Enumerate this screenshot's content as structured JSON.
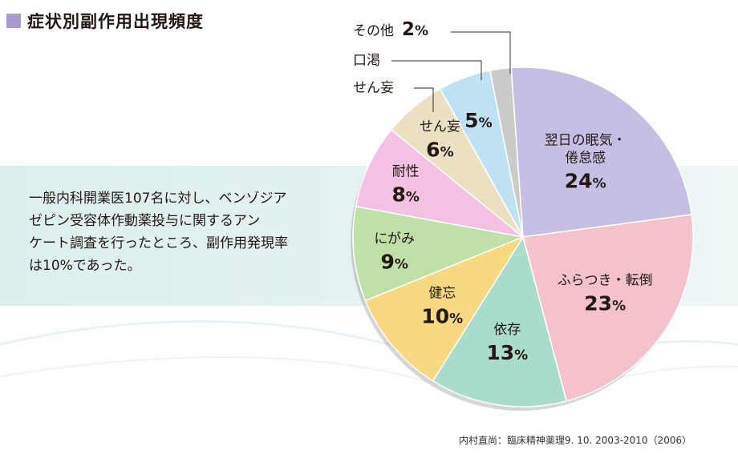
{
  "title": "症状別副作用出現頻度",
  "description": {
    "line1": "一般内科開業医107名に対し、ベンゾジア",
    "line2": "ゼピン受容体作動薬投与に関するアン",
    "line3": "ケート調査を行ったところ、副作用発現率",
    "line4": "は10%であった。"
  },
  "citation": "内村直尚：臨床精神薬理9. 10. 2003-2010（2006）",
  "colors": {
    "title_square": "#a99ad0",
    "band": "#dcefee"
  },
  "chart_data": {
    "type": "pie",
    "title": "症状別副作用出現頻度",
    "unit": "%",
    "slices": [
      {
        "label": "翌日の眠気・倦怠感",
        "label_lines": [
          "翌日の眠気・",
          "倦怠感"
        ],
        "value": 24,
        "display": "24",
        "color": "#c5c0e3"
      },
      {
        "label": "ふらつき・転倒",
        "label_lines": [
          "ふらつき・転倒"
        ],
        "value": 23,
        "display": "23",
        "color": "#f4c2cb"
      },
      {
        "label": "依存",
        "label_lines": [
          "依存"
        ],
        "value": 13,
        "display": "13",
        "color": "#a9dccb"
      },
      {
        "label": "健忘",
        "label_lines": [
          "健忘"
        ],
        "value": 10,
        "display": "10",
        "color": "#f8d97f"
      },
      {
        "label": "にがみ",
        "label_lines": [
          "にがみ"
        ],
        "value": 9,
        "display": "9",
        "color": "#bfe0a6"
      },
      {
        "label": "耐性",
        "label_lines": [
          "耐性"
        ],
        "value": 8,
        "display": "8",
        "color": "#f3c2e2"
      },
      {
        "label": "せん妄",
        "label_lines": [
          "せん妄"
        ],
        "value": 6,
        "display": "6",
        "color": "#ebe0c2"
      },
      {
        "label": "口渇",
        "label_lines": [
          "口渇"
        ],
        "value": 5,
        "display": "5",
        "color": "#bfe2f2"
      },
      {
        "label": "その他",
        "label_lines": [
          "その他"
        ],
        "value": 2,
        "display": "2",
        "color": "#cbcbcb"
      }
    ]
  }
}
